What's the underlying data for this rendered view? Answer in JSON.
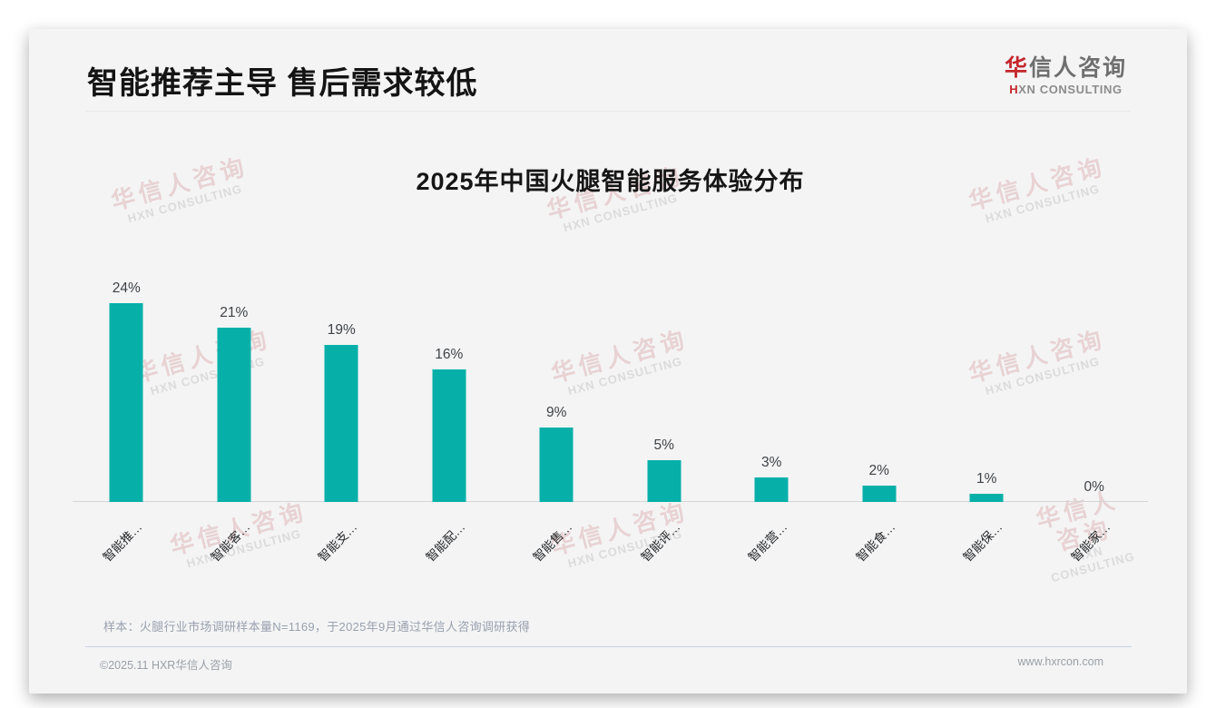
{
  "page": {
    "title": "智能推荐主导 售后需求较低",
    "logo": {
      "zh_accent": "华",
      "zh_rest": "信人咨询",
      "en_accent": "H",
      "en_rest": "XN CONSULTING"
    },
    "watermark": {
      "zh": "华信人咨询",
      "en": "HXN CONSULTING"
    },
    "sample_note": "样本：火腿行业市场调研样本量N=1169，于2025年9月通过华信人咨询调研获得",
    "footer": {
      "copyright": "©2025.11 HXR华信人咨询",
      "website": "www.hxrcon.com"
    }
  },
  "chart_data": {
    "type": "bar",
    "title": "2025年中国火腿智能服务体验分布",
    "categories": [
      "智能推…",
      "智能客…",
      "智能支…",
      "智能配…",
      "智能售…",
      "智能评…",
      "智能营…",
      "智能食…",
      "智能保…",
      "智能家…"
    ],
    "values": [
      24,
      21,
      19,
      16,
      9,
      5,
      3,
      2,
      1,
      0
    ],
    "value_labels": [
      "24%",
      "21%",
      "19%",
      "16%",
      "9%",
      "5%",
      "3%",
      "2%",
      "1%",
      "0%"
    ],
    "unit": "%",
    "bar_color": "#06b0a8",
    "value_label_color": "#3e4246",
    "axis_color": "#d3d5d7",
    "xlabel": "",
    "ylabel": "",
    "ylim": [
      0,
      38
    ],
    "grid": false,
    "legend": "none",
    "x_label_rotation": 45
  }
}
